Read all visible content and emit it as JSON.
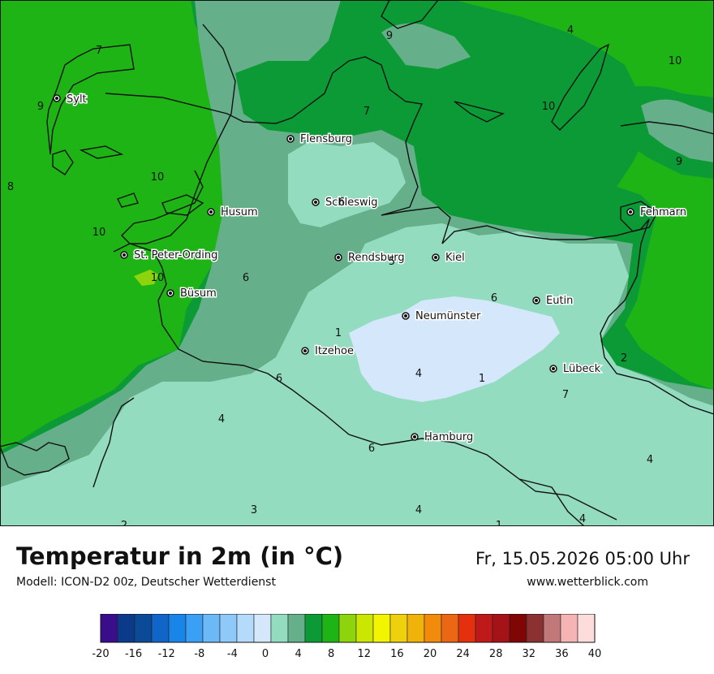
{
  "title": "Temperatur in 2m (in °C)",
  "model": "Modell: ICON-D2 00z, Deutscher Wetterdienst",
  "datetime": "Fr, 15.05.2026 05:00 Uhr",
  "website": "www.wetterblick.com",
  "cities": [
    {
      "name": "Sylt",
      "key": "sylt"
    },
    {
      "name": "Flensburg",
      "key": "flensburg"
    },
    {
      "name": "Schleswig",
      "key": "schleswig"
    },
    {
      "name": "Husum",
      "key": "husum"
    },
    {
      "name": "Fehmarn",
      "key": "fehmarn"
    },
    {
      "name": "St. Peter-Ording",
      "key": "st-peter-ording"
    },
    {
      "name": "Rendsburg",
      "key": "rendsburg"
    },
    {
      "name": "Kiel",
      "key": "kiel"
    },
    {
      "name": "Büsum",
      "key": "buesum"
    },
    {
      "name": "Eutin",
      "key": "eutin"
    },
    {
      "name": "Neumünster",
      "key": "neumuenster"
    },
    {
      "name": "Itzehoe",
      "key": "itzehoe"
    },
    {
      "name": "Lübeck",
      "key": "luebeck"
    },
    {
      "name": "Hamburg",
      "key": "hamburg"
    }
  ],
  "point_values": [
    "9",
    "4",
    "7",
    "10",
    "9",
    "10",
    "7",
    "8",
    "10",
    "9",
    "10",
    "6",
    "5",
    "10",
    "6",
    "6",
    "1",
    "2",
    "4",
    "1",
    "7",
    "6",
    "4",
    "4",
    "3",
    "4",
    "6",
    "2",
    "4",
    "1"
  ],
  "legend": {
    "colors": [
      "#3a0d8a",
      "#0b3a8a",
      "#0b4a96",
      "#1065c8",
      "#1a85e8",
      "#3ba0f5",
      "#6cb9f8",
      "#8ec9f9",
      "#b5dbfb",
      "#d4e7fb",
      "#93dcbf",
      "#65b08b",
      "#0c9a36",
      "#1fb416",
      "#8ed40c",
      "#cbe601",
      "#f3f500",
      "#efd00c",
      "#f0b309",
      "#f28b0b",
      "#ec6714",
      "#e4300d",
      "#be1a19",
      "#a51318",
      "#800505",
      "#8b3131",
      "#c07878",
      "#f5b3b3",
      "#fddcdc"
    ],
    "tick_labels": [
      "-20",
      "-16",
      "-12",
      "-8",
      "-4",
      "0",
      "4",
      "8",
      "12",
      "16",
      "20",
      "24",
      "28",
      "32",
      "36",
      "40"
    ]
  }
}
